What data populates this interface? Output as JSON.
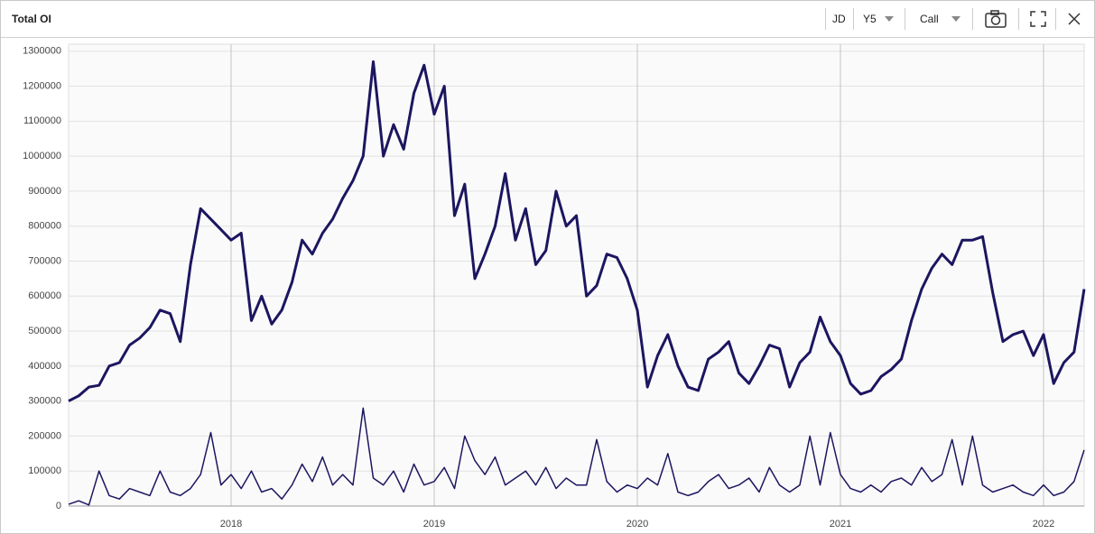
{
  "toolbar": {
    "ticker": "JD",
    "period": "Y5",
    "option_type": "Call"
  },
  "chart_data": {
    "type": "line",
    "title": "Total OI",
    "x": [
      2017.2,
      2017.25,
      2017.3,
      2017.35,
      2017.4,
      2017.45,
      2017.5,
      2017.55,
      2017.6,
      2017.65,
      2017.7,
      2017.75,
      2017.8,
      2017.85,
      2017.9,
      2017.95,
      2018,
      2018.05,
      2018.1,
      2018.15,
      2018.2,
      2018.25,
      2018.3,
      2018.35,
      2018.4,
      2018.45,
      2018.5,
      2018.55,
      2018.6,
      2018.65,
      2018.7,
      2018.75,
      2018.8,
      2018.85,
      2018.9,
      2018.95,
      2019,
      2019.05,
      2019.1,
      2019.15,
      2019.2,
      2019.25,
      2019.3,
      2019.35,
      2019.4,
      2019.45,
      2019.5,
      2019.55,
      2019.6,
      2019.65,
      2019.7,
      2019.75,
      2019.8,
      2019.85,
      2019.9,
      2019.95,
      2020,
      2020.05,
      2020.1,
      2020.15,
      2020.2,
      2020.25,
      2020.3,
      2020.35,
      2020.4,
      2020.45,
      2020.5,
      2020.55,
      2020.6,
      2020.65,
      2020.7,
      2020.75,
      2020.8,
      2020.85,
      2020.9,
      2020.95,
      2021,
      2021.05,
      2021.1,
      2021.15,
      2021.2,
      2021.25,
      2021.3,
      2021.35,
      2021.4,
      2021.45,
      2021.5,
      2021.55,
      2021.6,
      2021.65,
      2021.7,
      2021.75,
      2021.8,
      2021.85,
      2021.9,
      2021.95,
      2022,
      2022.05,
      2022.1,
      2022.15,
      2022.2
    ],
    "series": [
      {
        "color": "#1c1660",
        "width": 3,
        "values": [
          300000,
          315000,
          340000,
          345000,
          400000,
          410000,
          460000,
          480000,
          510000,
          560000,
          550000,
          470000,
          690000,
          850000,
          820000,
          790000,
          760000,
          780000,
          530000,
          600000,
          520000,
          560000,
          640000,
          760000,
          720000,
          780000,
          820000,
          880000,
          930000,
          1000000,
          1270000,
          1000000,
          1090000,
          1020000,
          1180000,
          1260000,
          1120000,
          1200000,
          830000,
          920000,
          650000,
          720000,
          800000,
          950000,
          760000,
          850000,
          690000,
          730000,
          900000,
          800000,
          830000,
          600000,
          630000,
          720000,
          710000,
          650000,
          560000,
          340000,
          430000,
          490000,
          400000,
          340000,
          330000,
          420000,
          440000,
          470000,
          380000,
          350000,
          400000,
          460000,
          450000,
          340000,
          410000,
          440000,
          540000,
          470000,
          430000,
          350000,
          320000,
          330000,
          370000,
          390000,
          420000,
          530000,
          620000,
          680000,
          720000,
          690000,
          760000,
          760000,
          770000,
          610000,
          470000,
          490000,
          500000,
          430000,
          490000,
          350000,
          410000,
          440000,
          620000
        ]
      },
      {
        "color": "#1c1660",
        "width": 1.5,
        "values": [
          5000,
          15000,
          3000,
          100000,
          30000,
          20000,
          50000,
          40000,
          30000,
          100000,
          40000,
          30000,
          50000,
          90000,
          210000,
          60000,
          90000,
          50000,
          100000,
          40000,
          50000,
          20000,
          60000,
          120000,
          70000,
          140000,
          60000,
          90000,
          60000,
          280000,
          80000,
          60000,
          100000,
          40000,
          120000,
          60000,
          70000,
          110000,
          50000,
          200000,
          130000,
          90000,
          140000,
          60000,
          80000,
          100000,
          60000,
          110000,
          50000,
          80000,
          60000,
          60000,
          190000,
          70000,
          40000,
          60000,
          50000,
          80000,
          60000,
          150000,
          40000,
          30000,
          40000,
          70000,
          90000,
          50000,
          60000,
          80000,
          40000,
          110000,
          60000,
          40000,
          60000,
          200000,
          60000,
          210000,
          90000,
          50000,
          40000,
          60000,
          40000,
          70000,
          80000,
          60000,
          110000,
          70000,
          90000,
          190000,
          60000,
          200000,
          60000,
          40000,
          50000,
          60000,
          40000,
          30000,
          60000,
          30000,
          40000,
          70000,
          160000
        ]
      }
    ],
    "xlim": [
      2017.2,
      2022.2
    ],
    "xticks": [
      2018,
      2019,
      2020,
      2021,
      2022
    ],
    "ylim": [
      0,
      1320000
    ],
    "yticks": [
      0,
      100000,
      200000,
      300000,
      400000,
      500000,
      600000,
      700000,
      800000,
      900000,
      1000000,
      1100000,
      1200000,
      1300000
    ],
    "grid": true
  }
}
